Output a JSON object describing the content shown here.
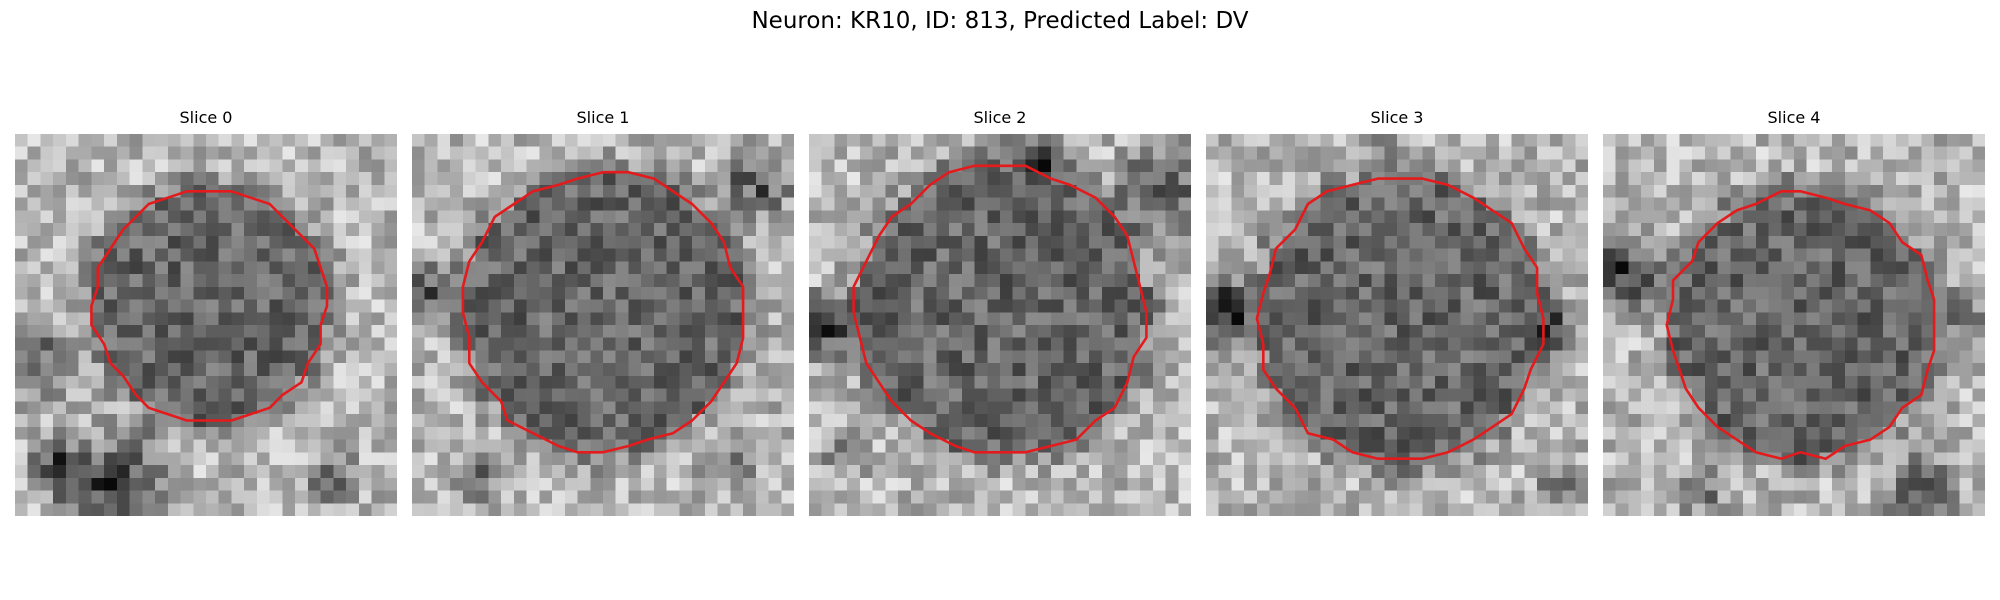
{
  "figure": {
    "title": "Neuron: KR10, ID: 813, Predicted Label: DV"
  },
  "panels": [
    {
      "label": "Slice 0",
      "outline_color": "#e41a1c"
    },
    {
      "label": "Slice 1",
      "outline_color": "#e41a1c"
    },
    {
      "label": "Slice 2",
      "outline_color": "#e41a1c"
    },
    {
      "label": "Slice 3",
      "outline_color": "#e41a1c"
    },
    {
      "label": "Slice 4",
      "outline_color": "#e41a1c"
    }
  ]
}
